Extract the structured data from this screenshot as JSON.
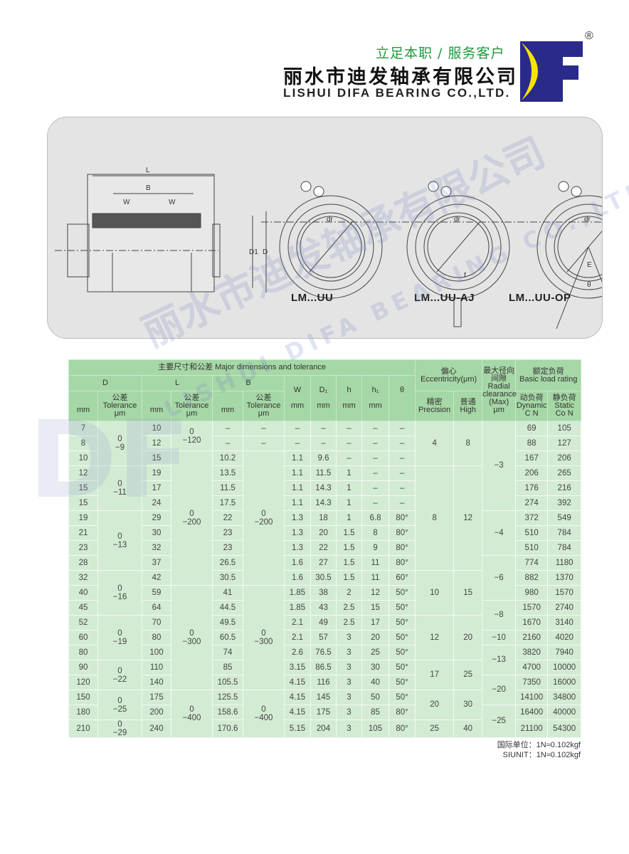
{
  "header": {
    "slogan": "立足本职 / 服务客户",
    "company_cn": "丽水市迪发轴承有限公司",
    "company_en": "LISHUI DIFA BEARING CO.,LTD.",
    "logo_text": "DF",
    "registered_mark": "®",
    "brand_colors": {
      "navy": "#2a2a8a",
      "yellow": "#f5e400",
      "green": "#1e9a3c"
    }
  },
  "diagram": {
    "labels": {
      "L": "L",
      "B": "B",
      "W": "W",
      "D1": "D1",
      "D": "D",
      "dr": "dr",
      "f": "f",
      "E": "E",
      "theta": "θ"
    },
    "types": [
      "LM...UU",
      "LM...UU-AJ",
      "LM...UU-OP"
    ]
  },
  "watermark": {
    "cn": "丽水市迪发轴承有限公司",
    "en": "LISHUI DIFA BEARING CO.,LTD."
  },
  "table": {
    "headers": {
      "major": "主要尺寸和公差 Major dimensions and tolerance",
      "D": "D",
      "L": "L",
      "B": "B",
      "W": "W",
      "D1": "D₁",
      "h": "h",
      "h1": "h₁",
      "theta": "θ",
      "mm": "mm",
      "tol_cn": "公差",
      "tol_en": "Tolerance",
      "um": "μm",
      "ecc_cn": "偏心",
      "ecc_en": "Eccentricity(μm)",
      "prec_cn": "精密",
      "prec_en": "Precision",
      "high_cn": "普通",
      "high_en": "High",
      "radial_cn": "最大径向间隙",
      "radial_en1": "Radial",
      "radial_en2": "clearance",
      "radial_en3": "(Max)",
      "load_cn": "额定负荷",
      "load_en": "Basic load rating",
      "dyn_cn": "动负荷",
      "dyn_en": "Dynamic",
      "dyn_unit": "C N",
      "stat_cn": "静负荷",
      "stat_en": "Static",
      "stat_unit": "Co N"
    },
    "D": [
      "7",
      "8",
      "10",
      "12",
      "15",
      "15",
      "19",
      "21",
      "23",
      "28",
      "32",
      "40",
      "45",
      "52",
      "60",
      "80",
      "90",
      "120",
      "150",
      "180",
      "210"
    ],
    "L": [
      "10",
      "12",
      "15",
      "19",
      "17",
      "24",
      "29",
      "30",
      "32",
      "37",
      "42",
      "59",
      "64",
      "70",
      "80",
      "100",
      "110",
      "140",
      "175",
      "200",
      "240"
    ],
    "W": [
      "–",
      "–",
      "1.1",
      "1.1",
      "1.1",
      "1.1",
      "1.3",
      "1.3",
      "1.3",
      "1.6",
      "1.6",
      "1.85",
      "1.85",
      "2.1",
      "2.1",
      "2.6",
      "3.15",
      "4.15",
      "4.15",
      "4.15",
      "5.15"
    ],
    "D1": [
      "–",
      "–",
      "9.6",
      "11.5",
      "14.3",
      "14.3",
      "18",
      "20",
      "22",
      "27",
      "30.5",
      "38",
      "43",
      "49",
      "57",
      "76.5",
      "86.5",
      "116",
      "145",
      "175",
      "204"
    ],
    "h": [
      "–",
      "–",
      "–",
      "1",
      "1",
      "1",
      "1",
      "1.5",
      "1.5",
      "1.5",
      "1.5",
      "2",
      "2.5",
      "2.5",
      "3",
      "3",
      "3",
      "3",
      "3",
      "3",
      "3"
    ],
    "h1": [
      "–",
      "–",
      "–",
      "–",
      "–",
      "–",
      "6.8",
      "8",
      "9",
      "11",
      "11",
      "12",
      "15",
      "17",
      "20",
      "25",
      "30",
      "40",
      "50",
      "85",
      "105"
    ],
    "theta": [
      "–",
      "–",
      "–",
      "–",
      "–",
      "–",
      "80°",
      "80°",
      "80°",
      "80°",
      "60°",
      "50°",
      "50°",
      "50°",
      "50°",
      "50°",
      "50°",
      "50°",
      "50°",
      "80°",
      "80°"
    ],
    "B": [
      "–",
      "–",
      "10.2",
      "13.5",
      "11.5",
      "17.5",
      "22",
      "23",
      "23",
      "26.5",
      "30.5",
      "41",
      "44.5",
      "49.5",
      "60.5",
      "74",
      "85",
      "105.5",
      "125.5",
      "158.6",
      "170.6"
    ],
    "dynamic": [
      "69",
      "88",
      "167",
      "206",
      "176",
      "274",
      "372",
      "510",
      "510",
      "774",
      "882",
      "980",
      "1570",
      "1670",
      "2160",
      "3820",
      "4700",
      "7350",
      "14100",
      "16400",
      "21100"
    ],
    "static": [
      "105",
      "127",
      "206",
      "265",
      "216",
      "392",
      "549",
      "784",
      "784",
      "1180",
      "1370",
      "1570",
      "2740",
      "3140",
      "4020",
      "7940",
      "10000",
      "16000",
      "34800",
      "40000",
      "54300"
    ],
    "D_tol": [
      {
        "upper": "0",
        "lower": "−9",
        "rows": 3
      },
      {
        "upper": "0",
        "lower": "−11",
        "rows": 3
      },
      {
        "upper": "0",
        "lower": "−13",
        "rows": 4
      },
      {
        "upper": "0",
        "lower": "−16",
        "rows": 3
      },
      {
        "upper": "0",
        "lower": "−19",
        "rows": 3
      },
      {
        "upper": "0",
        "lower": "−22",
        "rows": 2
      },
      {
        "upper": "0",
        "lower": "−25",
        "rows": 2
      },
      {
        "upper": "0",
        "lower": "−29",
        "rows": 1
      }
    ],
    "L_tol": [
      {
        "upper": "0",
        "lower": "−120",
        "rows": 2
      },
      {
        "upper": "0",
        "lower": "−200",
        "rows": 9
      },
      {
        "upper": "0",
        "lower": "−300",
        "rows": 7
      },
      {
        "upper": "0",
        "lower": "−400",
        "rows": 3
      }
    ],
    "B_tol": [
      {
        "upper": "–",
        "lower": "",
        "rows": 1
      },
      {
        "upper": "–",
        "lower": "",
        "rows": 1
      },
      {
        "upper": "0",
        "lower": "−200",
        "rows": 9
      },
      {
        "upper": "0",
        "lower": "−300",
        "rows": 7
      },
      {
        "upper": "0",
        "lower": "−400",
        "rows": 3
      }
    ],
    "precision": [
      {
        "value": "4",
        "rows": 3
      },
      {
        "value": "8",
        "rows": 7
      },
      {
        "value": "10",
        "rows": 3
      },
      {
        "value": "12",
        "rows": 3
      },
      {
        "value": "17",
        "rows": 2
      },
      {
        "value": "20",
        "rows": 2
      },
      {
        "value": "25",
        "rows": 1
      }
    ],
    "high": [
      {
        "value": "8",
        "rows": 3
      },
      {
        "value": "12",
        "rows": 7
      },
      {
        "value": "15",
        "rows": 3
      },
      {
        "value": "20",
        "rows": 3
      },
      {
        "value": "25",
        "rows": 2
      },
      {
        "value": "30",
        "rows": 2
      },
      {
        "value": "40",
        "rows": 1
      }
    ],
    "radial": [
      {
        "value": "−3",
        "rows": 6
      },
      {
        "value": "−4",
        "rows": 3
      },
      {
        "value": "−6",
        "rows": 3
      },
      {
        "value": "−8",
        "rows": 2
      },
      {
        "value": "−10",
        "rows": 1
      },
      {
        "value": "−13",
        "rows": 2
      },
      {
        "value": "−20",
        "rows": 2
      },
      {
        "value": "−25",
        "rows": 2
      }
    ]
  },
  "footnote": {
    "line1": "国际单位：1N≈0.102kgf",
    "line2": "SIUNIT：1N≈0.102kgf"
  }
}
